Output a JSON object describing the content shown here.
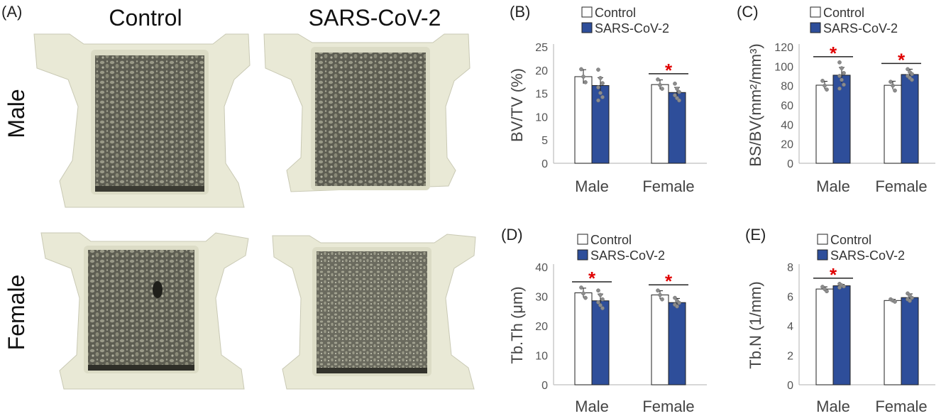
{
  "panel_a": {
    "letter": "(A)",
    "columns": [
      "Control",
      "SARS-CoV-2"
    ],
    "rows": [
      "Male",
      "Female"
    ]
  },
  "colors": {
    "control": "#ffffff",
    "sars": "#2e4e9a",
    "star": "#e00000",
    "dots": "#8c8c8c"
  },
  "chart_data": [
    {
      "panel": "(B)",
      "type": "bar",
      "categories": [
        "Male",
        "Female"
      ],
      "series": [
        {
          "name": "Control",
          "values": [
            18.6,
            16.9
          ],
          "errors": [
            1.5,
            1.0
          ],
          "points": [
            [
              20.2,
              18.6,
              17.4
            ],
            [
              18.0,
              16.8,
              16.0
            ]
          ]
        },
        {
          "name": "SARS-CoV-2",
          "values": [
            16.7,
            15.2
          ],
          "errors": [
            1.7,
            1.1
          ],
          "points": [
            [
              20.1,
              18.3,
              17.2,
              16.3,
              15.1,
              14.2,
              13.5
            ],
            [
              17.1,
              16.0,
              15.3,
              14.6,
              14.0,
              13.5
            ]
          ]
        }
      ],
      "ylabel": "BV/TV (%)",
      "ylim": [
        0,
        25
      ],
      "yticks": [
        0,
        5,
        10,
        15,
        20,
        25
      ],
      "significance": [
        {
          "category": "Female",
          "label": "*"
        }
      ],
      "legend": "top"
    },
    {
      "panel": "(C)",
      "type": "bar",
      "categories": [
        "Male",
        "Female"
      ],
      "series": [
        {
          "name": "Control",
          "values": [
            80.5,
            80.4
          ],
          "errors": [
            4.0,
            4.2
          ],
          "points": [
            [
              85,
              80,
              76
            ],
            [
              84,
              80,
              75
            ]
          ]
        },
        {
          "name": "SARS-CoV-2",
          "values": [
            90.8,
            91.5
          ],
          "errors": [
            8.0,
            5.5
          ],
          "points": [
            [
              104,
              98,
              93,
              90,
              86,
              81,
              77
            ],
            [
              97,
              94,
              92,
              90,
              88,
              86
            ]
          ]
        }
      ],
      "ylabel": "BS/BV(mm²/mm³)",
      "ylim": [
        0,
        120
      ],
      "yticks": [
        0,
        20,
        40,
        60,
        80,
        100,
        120
      ],
      "significance": [
        {
          "category": "Male",
          "label": "*"
        },
        {
          "category": "Female",
          "label": "*"
        }
      ],
      "legend": "top"
    },
    {
      "panel": "(D)",
      "type": "bar",
      "categories": [
        "Male",
        "Female"
      ],
      "series": [
        {
          "name": "Control",
          "values": [
            31.2,
            30.5
          ],
          "errors": [
            1.6,
            1.4
          ],
          "points": [
            [
              33,
              31,
              29.5
            ],
            [
              32,
              30.5,
              29
            ]
          ]
        },
        {
          "name": "SARS-CoV-2",
          "values": [
            28.5,
            27.9
          ],
          "errors": [
            2.3,
            1.4
          ],
          "points": [
            [
              32,
              30.5,
              29,
              28,
              27,
              26
            ],
            [
              29.5,
              28.5,
              27.8,
              27.2,
              26.6
            ]
          ]
        }
      ],
      "ylabel": "Tb.Th (μm)",
      "ylim": [
        0,
        40
      ],
      "yticks": [
        0,
        10,
        20,
        30,
        40
      ],
      "significance": [
        {
          "category": "Male",
          "label": "*"
        },
        {
          "category": "Female",
          "label": "*"
        }
      ],
      "legend": "top"
    },
    {
      "panel": "(E)",
      "type": "bar",
      "categories": [
        "Male",
        "Female"
      ],
      "series": [
        {
          "name": "Control",
          "values": [
            6.5,
            5.72
          ],
          "errors": [
            0.15,
            0.08
          ],
          "points": [
            [
              6.65,
              6.5,
              6.35
            ],
            [
              5.8,
              5.72,
              5.64
            ]
          ]
        },
        {
          "name": "SARS-CoV-2",
          "values": [
            6.72,
            5.92
          ],
          "errors": [
            0.1,
            0.25
          ],
          "points": [
            [
              6.85,
              6.75,
              6.68,
              6.6
            ],
            [
              6.2,
              6.05,
              5.9,
              5.8,
              5.7
            ]
          ]
        }
      ],
      "ylabel": "Tb.N (1/mm)",
      "ylim": [
        0,
        8
      ],
      "yticks": [
        0,
        2,
        4,
        6,
        8
      ],
      "significance": [
        {
          "category": "Male",
          "label": "*"
        }
      ],
      "legend": "top"
    }
  ]
}
